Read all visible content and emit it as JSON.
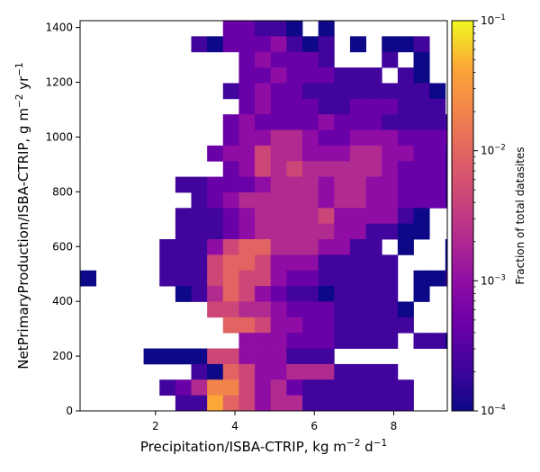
{
  "chart_data": {
    "type": "heatmap",
    "xlabel_main": "Precipitation/ISBA-CTRIP,  kg m",
    "xlabel_exp1": "−2",
    "xlabel_mid": " d",
    "xlabel_exp2": "−1",
    "ylabel_main": "NetPrimaryProduction/ISBA-CTRIP,  g m",
    "ylabel_exp1": "−2",
    "ylabel_mid": " yr",
    "ylabel_exp2": "−1",
    "colorbar_label": "Fraction of total datasites",
    "xlim": [
      0.1,
      9.35
    ],
    "ylim": [
      0,
      1425
    ],
    "x_ticks": [
      2,
      4,
      6,
      8
    ],
    "x_tick_labels": [
      "2",
      "4",
      "6",
      "8"
    ],
    "y_ticks": [
      0,
      200,
      400,
      600,
      800,
      1000,
      1200,
      1400
    ],
    "y_tick_labels": [
      "0",
      "200",
      "400",
      "600",
      "800",
      "1000",
      "1200",
      "1400"
    ],
    "colorbar_scale": "log",
    "colorbar_range": [
      0.0001,
      0.1
    ],
    "colorbar_ticks": [
      0.0001,
      0.001,
      0.01,
      0.1
    ],
    "colorbar_tick_base": "10",
    "colorbar_tick_exponents": [
      "−4",
      "−3",
      "−2",
      "−1"
    ],
    "colormap": "plasma",
    "grid": false,
    "bins": {
      "x_start": 0.1,
      "x_step": 0.4,
      "nx": 24,
      "y_start": 0,
      "y_step": 57,
      "ny": 25
    },
    "rows_top_to_bottom": [
      ".........ccBBA.A........",
      ".......BAcccdBAB.A.AAB..",
      "..........cdcccB...B.A..",
      "..........ccdcccBBB.BA..",
      ".........BcdccBBBBBBBBA.",
      "..........cdcccBBcccBBB.",
      ".........cdccccdcccBBBBB",
      ".........cddeedccdddcccc",
      "........cddfeedddeeddccB",
      ".........cdfefeeeeedcccB",
      "......BBcccdeeedeeddcccB",
      ".......BcdeeeeedeeddcccB",
      "......BBBcdeeeefddddBA..",
      "......BBBcdeeeeeddBBAA..",
      ".....BBBdfggeeeddBB.A..A",
      ".....BBBfggfdddBBBBB...A",
      "A....BBBfgffdccBBBBB.AAB",
      "......ABegfdcBBABBBB.A..",
      ".......bffeedcccBBBBA...",
      ".........ggfddccBBBBB...",
      "..........dddcccBBBB.BBA",
      "....AAAAffdddBBB........",
      ".......BAgfddeeeBBBB....",
      ".....BcehhfdecBBBBBBB...",
      "......BBigfdeeBBBBBBB..."
    ]
  }
}
